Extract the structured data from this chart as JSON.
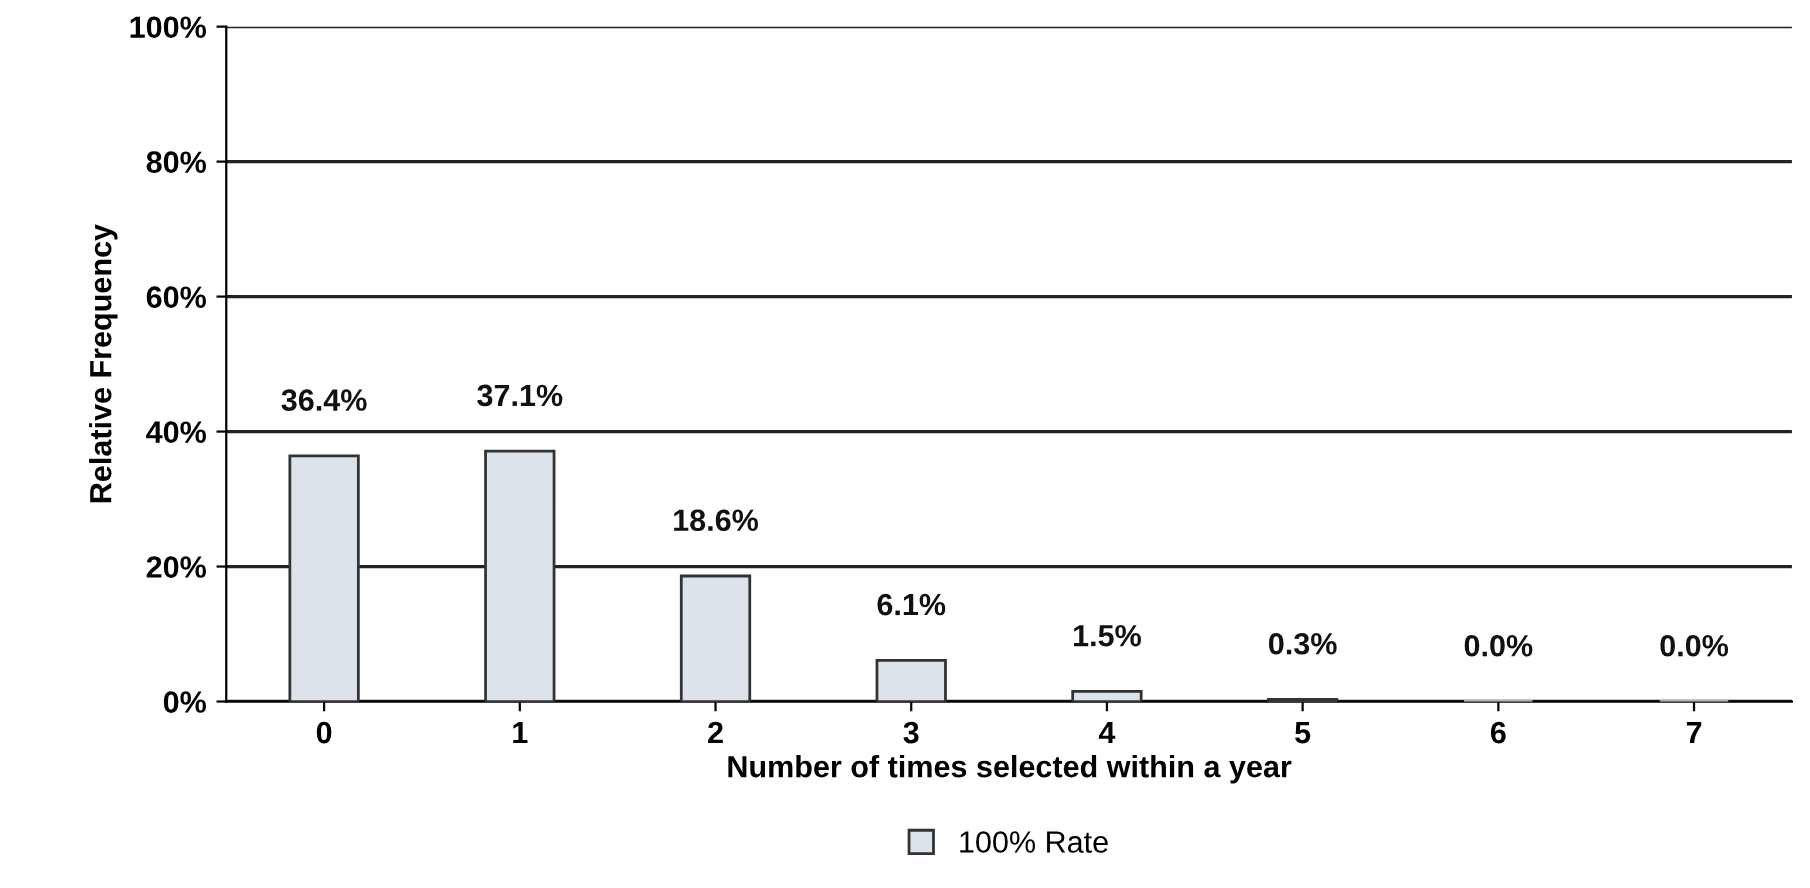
{
  "chart_data": {
    "type": "bar",
    "xlabel": "Number of times selected within a year",
    "ylabel": "Relative Frequency",
    "categories": [
      "0",
      "1",
      "2",
      "3",
      "4",
      "5",
      "6",
      "7"
    ],
    "series": [
      {
        "name": "100% Rate",
        "color": "#dde3ea",
        "values": [
          36.4,
          37.1,
          18.6,
          6.1,
          1.5,
          0.3,
          0.0,
          0.0
        ],
        "value_labels": [
          "36.4%",
          "37.1%",
          "18.6%",
          "6.1%",
          "1.5%",
          "0.3%",
          "0.0%",
          "0.0%"
        ]
      }
    ],
    "ylim": [
      0,
      100
    ],
    "yticks": [
      {
        "value": 0,
        "label": "0%"
      },
      {
        "value": 20,
        "label": "20%"
      },
      {
        "value": 40,
        "label": "40%"
      },
      {
        "value": 60,
        "label": "60%"
      },
      {
        "value": 80,
        "label": "80%"
      },
      {
        "value": 100,
        "label": "100%"
      }
    ],
    "grid": "y",
    "legend": "bottom"
  }
}
